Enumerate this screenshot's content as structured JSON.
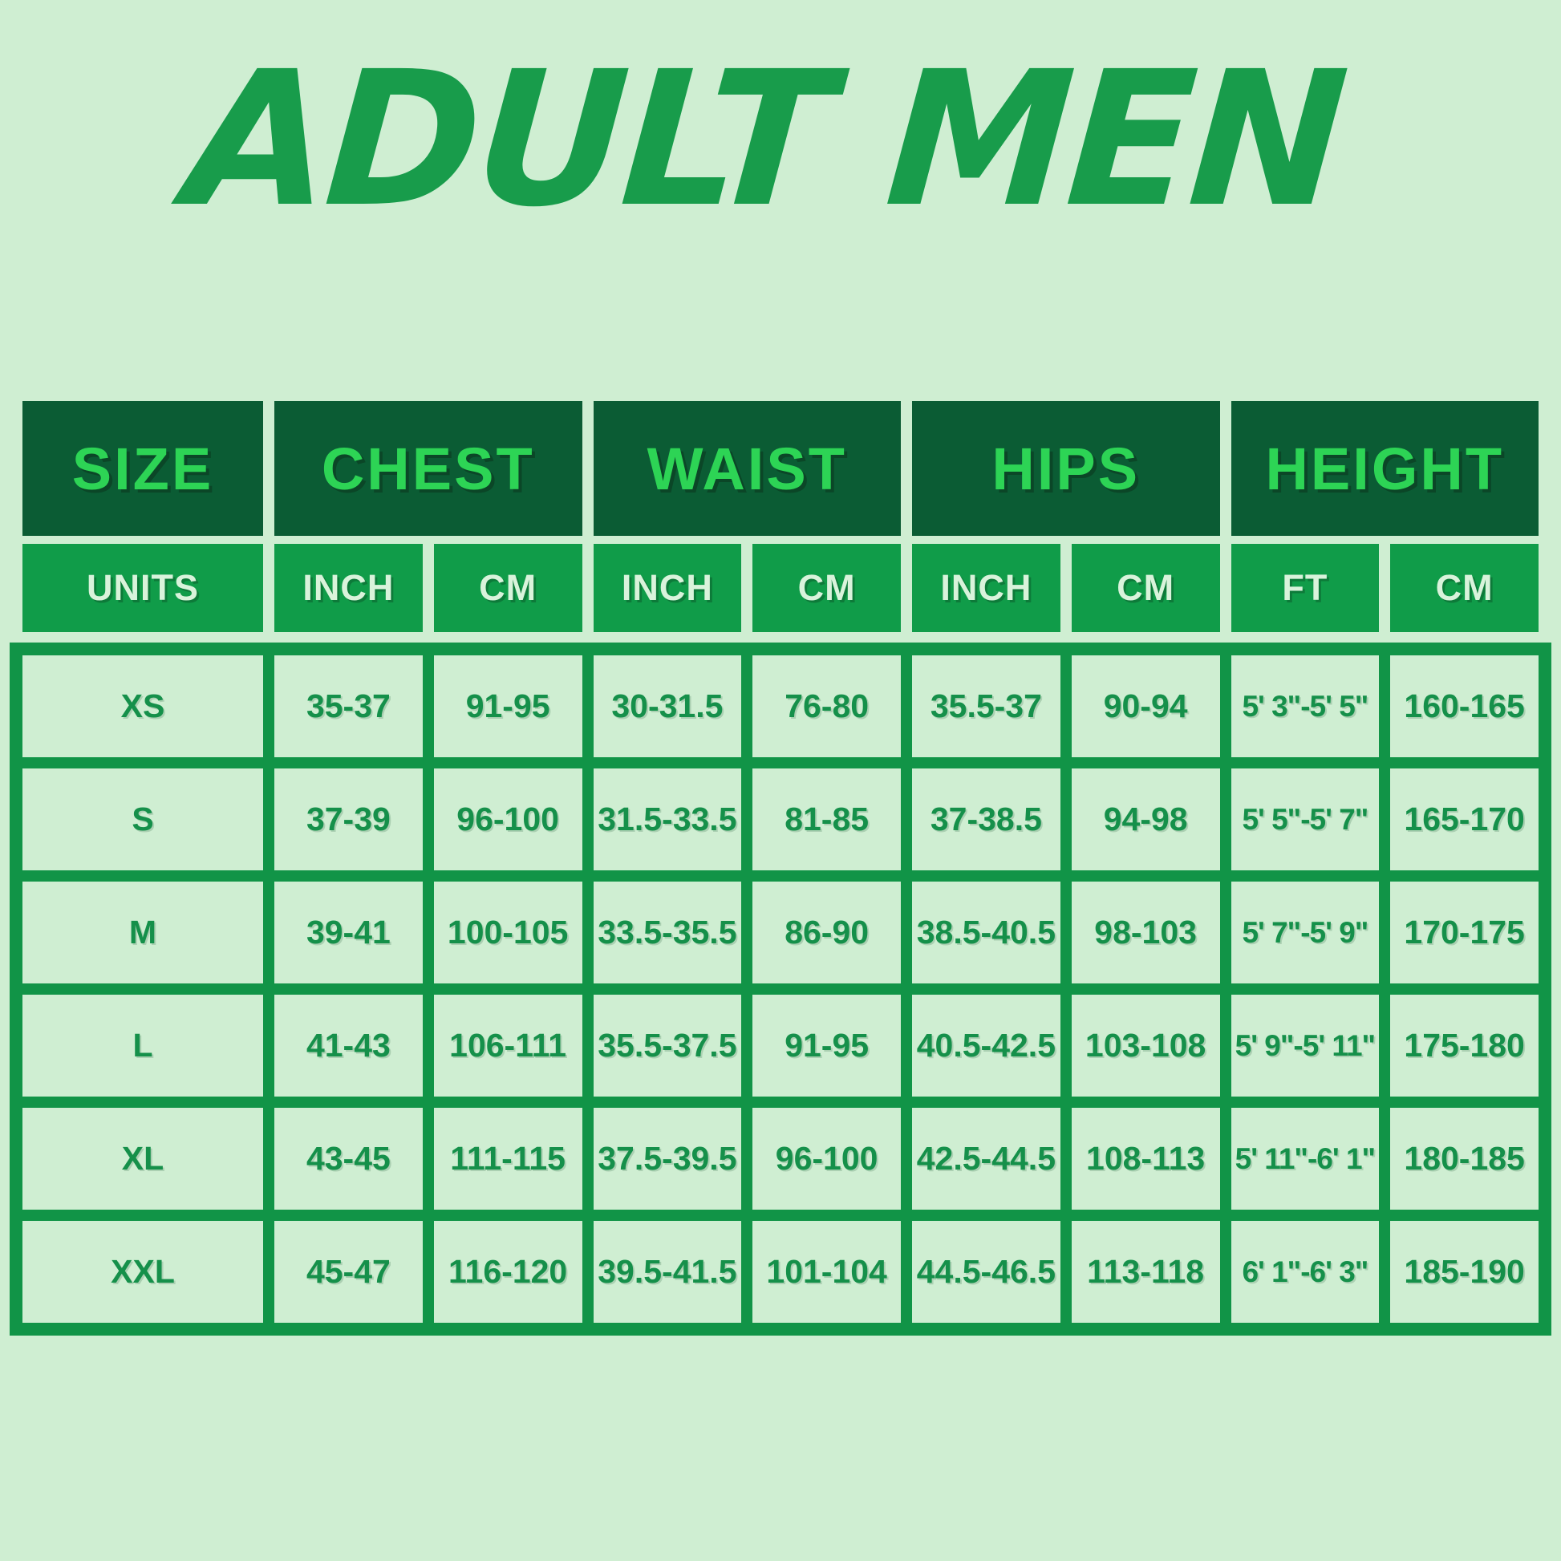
{
  "title": "ADULT MEN",
  "colors": {
    "background": "#cfeed2",
    "title_green": "#189c4b",
    "header_bg": "#0b5c34",
    "header_text": "#2dd455",
    "units_bg": "#109c49",
    "units_text": "#d9f3db",
    "grid_border_green": "#119447",
    "cell_bg": "#cfeed2",
    "cell_text": "#15904a"
  },
  "chart_data": {
    "type": "table",
    "title": "ADULT MEN",
    "column_groups": [
      "SIZE",
      "CHEST",
      "WAIST",
      "HIPS",
      "HEIGHT"
    ],
    "units_row": [
      "UNITS",
      "INCH",
      "CM",
      "INCH",
      "CM",
      "INCH",
      "CM",
      "FT",
      "CM"
    ],
    "rows": [
      [
        "XS",
        "35-37",
        "91-95",
        "30-31.5",
        "76-80",
        "35.5-37",
        "90-94",
        "5' 3\"-5' 5\"",
        "160-165"
      ],
      [
        "S",
        "37-39",
        "96-100",
        "31.5-33.5",
        "81-85",
        "37-38.5",
        "94-98",
        "5' 5\"-5' 7\"",
        "165-170"
      ],
      [
        "M",
        "39-41",
        "100-105",
        "33.5-35.5",
        "86-90",
        "38.5-40.5",
        "98-103",
        "5' 7\"-5' 9\"",
        "170-175"
      ],
      [
        "L",
        "41-43",
        "106-111",
        "35.5-37.5",
        "91-95",
        "40.5-42.5",
        "103-108",
        "5' 9\"-5' 11\"",
        "175-180"
      ],
      [
        "XL",
        "43-45",
        "111-115",
        "37.5-39.5",
        "96-100",
        "42.5-44.5",
        "108-113",
        "5' 11\"-6' 1\"",
        "180-185"
      ],
      [
        "XXL",
        "45-47",
        "116-120",
        "39.5-41.5",
        "101-104",
        "44.5-46.5",
        "113-118",
        "6' 1\"-6' 3\"",
        "185-190"
      ]
    ]
  }
}
